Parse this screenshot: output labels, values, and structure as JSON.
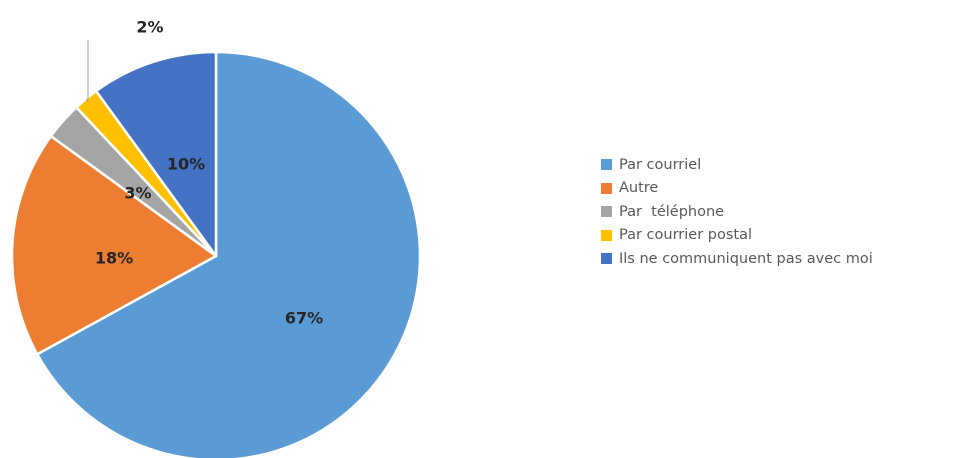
{
  "chart_data": {
    "type": "pie",
    "title": "",
    "start_angle_deg": 0,
    "direction": "clockwise",
    "slices": [
      {
        "label": "Par courriel",
        "value": 67,
        "display": "67%",
        "color": "#5b9bd5"
      },
      {
        "label": "Autre",
        "value": 18,
        "display": "18%",
        "color": "#ed7d31"
      },
      {
        "label": "Par  téléphone",
        "value": 3,
        "display": "3%",
        "color": "#a5a5a5"
      },
      {
        "label": "Par courrier postal",
        "value": 2,
        "display": "2%",
        "color": "#ffc000"
      },
      {
        "label": "Ils ne communiquent pas avec moi",
        "value": 10,
        "display": "10%",
        "color": "#4472c4"
      }
    ],
    "legend_position": "right"
  }
}
